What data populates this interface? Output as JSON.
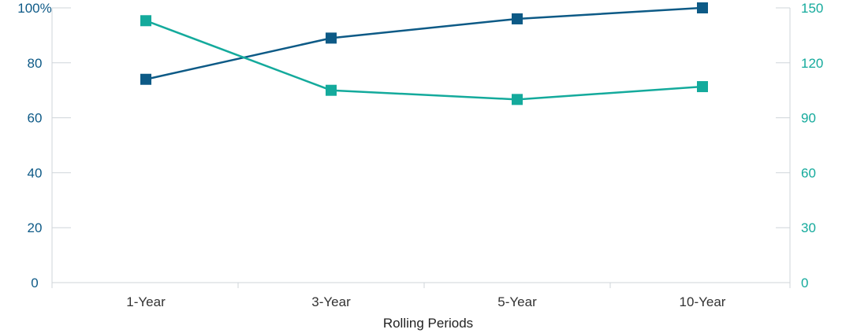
{
  "chart_data": {
    "type": "line",
    "categories": [
      "1-Year",
      "3-Year",
      "5-Year",
      "10-Year"
    ],
    "xlabel": "Rolling Periods",
    "ylabel_left": "",
    "ylabel_right": "",
    "y_left": {
      "min": 0,
      "max": 100,
      "ticks": [
        0,
        20,
        40,
        60,
        80,
        100
      ],
      "tick_labels": [
        "0",
        "20",
        "40",
        "60",
        "80",
        "100%"
      ]
    },
    "y_right": {
      "min": 0,
      "max": 150,
      "ticks": [
        0,
        30,
        60,
        90,
        120,
        150
      ],
      "tick_labels": [
        "0",
        "30",
        "60",
        "90",
        "120",
        "150"
      ]
    },
    "series": [
      {
        "axis": "left",
        "color": "#0d5a86",
        "marker": "square",
        "values": [
          74,
          89,
          96,
          100
        ]
      },
      {
        "axis": "right",
        "color": "#14aa9c",
        "marker": "square",
        "values": [
          143,
          105,
          100,
          107
        ]
      }
    ],
    "grid": false,
    "legend": "none"
  }
}
